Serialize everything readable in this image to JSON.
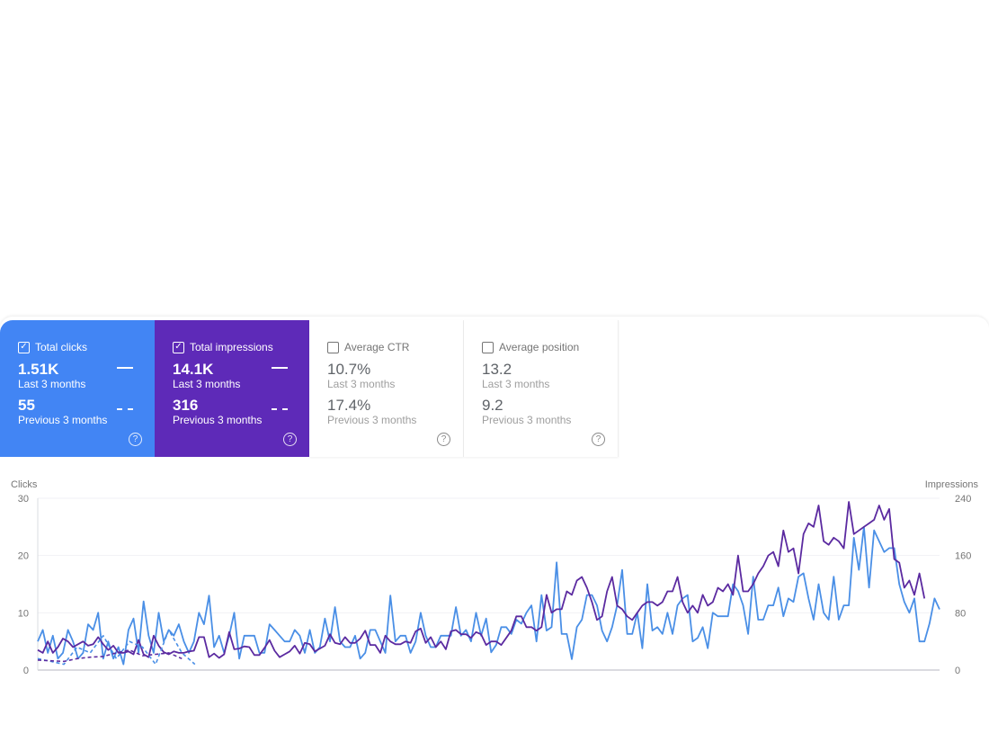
{
  "cards": [
    {
      "label": "Total clicks",
      "checked": true,
      "current": "1.51K",
      "current_label": "Last 3 months",
      "previous": "55",
      "previous_label": "Previous 3 months",
      "color": "#4285f4"
    },
    {
      "label": "Total impressions",
      "checked": true,
      "current": "14.1K",
      "current_label": "Last 3 months",
      "previous": "316",
      "previous_label": "Previous 3 months",
      "color": "#5e2ab8"
    },
    {
      "label": "Average CTR",
      "checked": false,
      "current": "10.7%",
      "current_label": "Last 3 months",
      "previous": "17.4%",
      "previous_label": "Previous 3 months"
    },
    {
      "label": "Average position",
      "checked": false,
      "current": "13.2",
      "current_label": "Last 3 months",
      "previous": "9.2",
      "previous_label": "Previous 3 months"
    }
  ],
  "icons": {
    "checkbox": "checkbox-icon",
    "help": "help-circle-icon"
  },
  "chart_data": {
    "type": "line",
    "ylabel_left": "Clicks",
    "ylabel_right": "Impressions",
    "ylim_left": [
      0,
      30
    ],
    "ylim_right": [
      0,
      240
    ],
    "yticks_left": [
      "0",
      "10",
      "20",
      "30"
    ],
    "yticks_right": [
      "0",
      "80",
      "160",
      "240"
    ],
    "grid": true,
    "series": [
      {
        "name": "Clicks",
        "axis": "left",
        "color": "#4a8fe6",
        "style": "solid",
        "values": [
          5,
          7,
          3,
          6,
          2,
          3,
          7,
          5,
          2,
          3,
          8,
          7,
          10,
          2,
          5,
          2,
          4,
          1,
          7,
          9,
          3,
          12,
          6,
          3,
          10,
          5,
          7,
          6,
          8,
          5,
          3,
          5,
          10,
          8,
          13,
          4,
          6,
          3,
          6,
          10,
          2,
          6,
          6,
          6,
          3,
          3,
          8,
          7,
          6,
          5,
          5,
          7,
          6,
          3,
          7,
          3,
          4,
          9,
          5,
          11,
          5,
          4,
          4,
          6,
          2,
          3,
          7,
          7,
          5,
          3,
          13,
          5,
          6,
          6,
          3,
          5,
          10,
          6,
          4,
          4,
          6,
          6,
          6,
          11,
          6,
          7,
          5,
          10,
          6,
          9,
          3.1,
          4.4,
          7.5,
          7.5,
          6.3,
          8.8,
          8.1,
          10,
          11.3,
          5,
          13.1,
          6.9,
          7.5,
          18.8,
          6.3,
          6.3,
          1.9,
          7.5,
          8.8,
          13.1,
          13.1,
          11.3,
          6.9,
          5,
          7.5,
          11.3,
          17.5,
          6.3,
          6.3,
          10,
          3.8,
          15,
          6.9,
          7.5,
          6.3,
          10,
          6.3,
          11.3,
          12.5,
          13.1,
          5,
          5.6,
          7.5,
          3.8,
          10,
          9.4,
          9.4,
          9.4,
          15,
          13.8,
          11.3,
          6.3,
          16.3,
          8.8,
          8.8,
          11.3,
          11.3,
          14.4,
          9.4,
          12.5,
          11.9,
          16.3,
          16.9,
          12.5,
          8.8,
          15,
          10,
          8.8,
          16.3,
          8.8,
          11.3,
          11.3,
          23.1,
          17.5,
          25,
          14.4,
          24.4,
          22.5,
          20.6,
          21.3,
          21.3,
          15,
          11.9,
          10,
          12.5,
          5,
          5,
          8.1,
          12.5,
          10.6
        ]
      },
      {
        "name": "Impressions",
        "axis": "right",
        "color": "#5b2aa0",
        "style": "solid",
        "values": [
          28,
          24,
          40,
          24,
          32,
          44,
          40,
          32,
          36,
          40,
          34,
          36,
          46,
          36,
          28,
          34,
          24,
          24,
          26,
          22,
          42,
          22,
          18,
          48,
          34,
          25,
          22,
          26,
          24,
          24,
          26,
          27,
          46,
          46,
          18,
          23,
          17,
          22,
          53,
          29,
          30,
          33,
          32,
          21,
          21,
          31,
          42,
          27,
          18,
          22,
          26,
          34,
          23,
          38,
          36,
          26,
          30,
          34,
          50,
          38,
          36,
          46,
          38,
          38,
          44,
          55,
          35,
          35,
          24,
          48,
          40,
          36,
          36,
          40,
          38,
          54,
          58,
          38,
          46,
          32,
          40,
          29,
          54,
          56,
          50,
          50,
          45,
          53,
          50,
          35,
          40,
          40,
          35,
          45,
          55,
          75,
          75,
          60,
          60,
          55,
          60,
          105,
          80,
          85,
          85,
          110,
          105,
          125,
          130,
          115,
          95,
          70,
          75,
          110,
          130,
          90,
          85,
          75,
          70,
          80,
          90,
          95,
          95,
          90,
          95,
          110,
          110,
          130,
          95,
          80,
          90,
          80,
          105,
          90,
          95,
          115,
          110,
          120,
          105,
          160,
          110,
          110,
          120,
          135,
          145,
          160,
          165,
          145,
          195,
          165,
          170,
          135,
          190,
          205,
          200,
          230,
          180,
          175,
          185,
          180,
          170,
          235,
          190,
          195,
          200,
          205,
          210,
          230,
          210,
          225,
          155,
          150,
          115,
          125,
          105,
          135,
          100
        ]
      },
      {
        "name": "Clicks (previous 3 months)",
        "axis": "left",
        "color": "#4a8fe6",
        "style": "dashed",
        "values": [
          2,
          1.5,
          1,
          4,
          3,
          6,
          2,
          5,
          4,
          1,
          7,
          3,
          1
        ]
      },
      {
        "name": "Impressions (previous 3 months)",
        "axis": "right",
        "color": "#5b2aa0",
        "style": "dashed",
        "values": [
          14,
          13,
          12,
          16,
          18,
          19,
          24,
          28,
          20,
          22,
          24,
          16
        ]
      }
    ]
  }
}
